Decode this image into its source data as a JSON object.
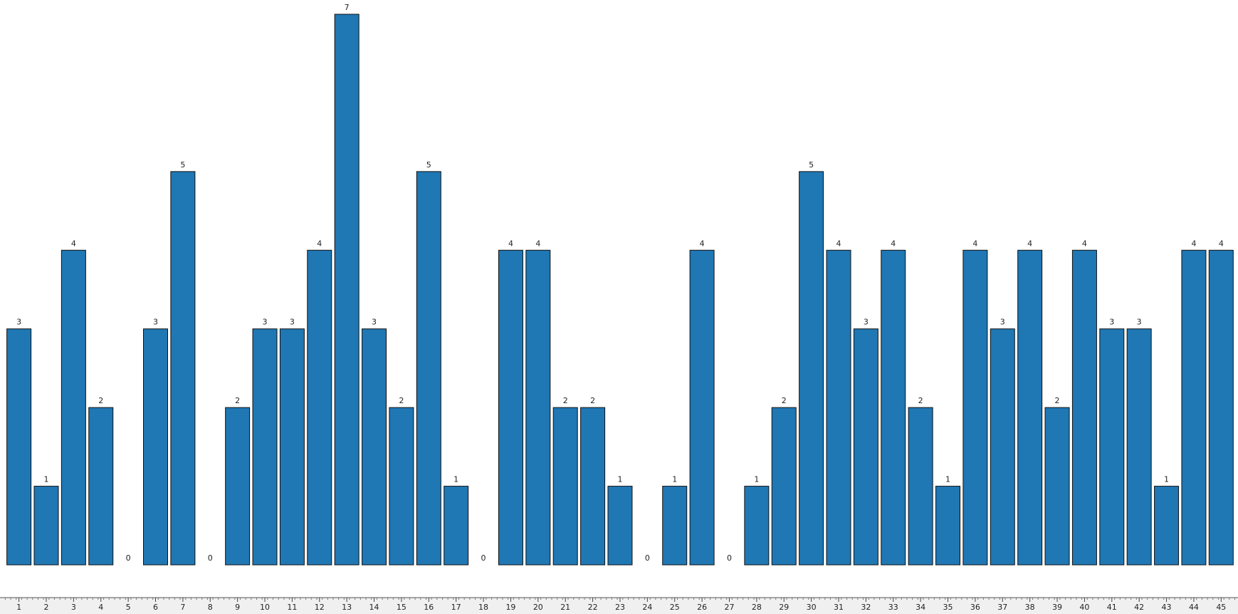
{
  "chart_data": {
    "type": "bar",
    "categories": [
      "1",
      "2",
      "3",
      "4",
      "5",
      "6",
      "7",
      "8",
      "9",
      "10",
      "11",
      "12",
      "13",
      "14",
      "15",
      "16",
      "17",
      "18",
      "19",
      "20",
      "21",
      "22",
      "23",
      "24",
      "25",
      "26",
      "27",
      "28",
      "29",
      "30",
      "31",
      "32",
      "33",
      "34",
      "35",
      "36",
      "37",
      "38",
      "39",
      "40",
      "41",
      "42",
      "43",
      "44",
      "45"
    ],
    "values": [
      3,
      1,
      4,
      2,
      0,
      3,
      5,
      0,
      2,
      3,
      3,
      4,
      7,
      3,
      2,
      5,
      1,
      0,
      4,
      4,
      2,
      2,
      1,
      0,
      1,
      4,
      0,
      1,
      2,
      5,
      4,
      3,
      4,
      2,
      1,
      4,
      3,
      4,
      2,
      4,
      3,
      3,
      1,
      4,
      4
    ],
    "color": "#1f77b4",
    "ylim": [
      0,
      7
    ]
  }
}
